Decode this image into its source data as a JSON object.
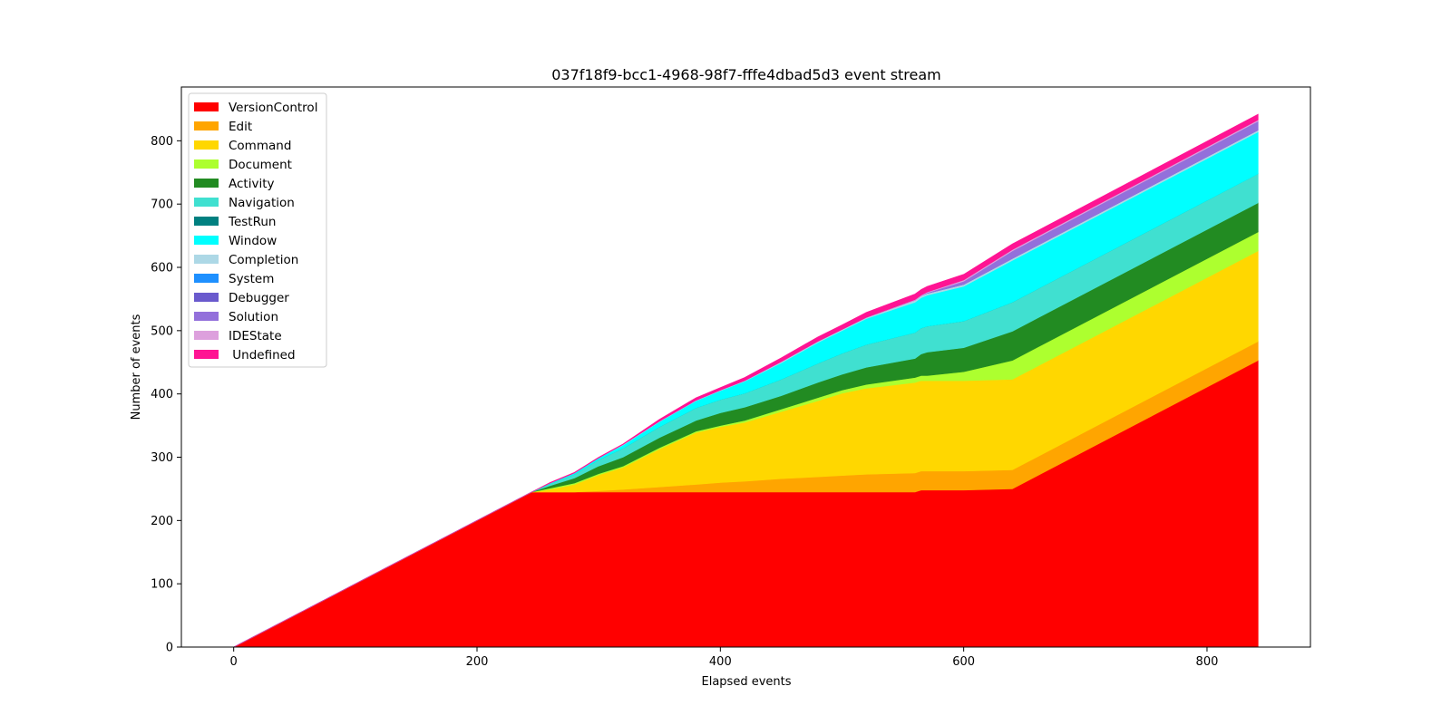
{
  "chart_data": {
    "type": "area",
    "stacked": true,
    "title": "037f18f9-bcc1-4968-98f7-fffe4dbad5d3 event stream",
    "xlabel": "Elapsed events",
    "ylabel": "Number of events",
    "xlim": [
      -43,
      885
    ],
    "ylim": [
      0,
      885
    ],
    "xticks": [
      0,
      200,
      400,
      600,
      800
    ],
    "yticks": [
      0,
      100,
      200,
      300,
      400,
      500,
      600,
      700,
      800
    ],
    "grid": false,
    "legend_position": "top-left",
    "x": [
      0,
      245,
      260,
      280,
      300,
      320,
      350,
      380,
      400,
      420,
      450,
      480,
      500,
      520,
      560,
      565,
      570,
      600,
      640,
      842
    ],
    "series": [
      {
        "name": "VersionControl",
        "color": "#ff0000",
        "values": [
          0,
          245,
          245,
          245,
          245,
          245,
          245,
          245,
          245,
          245,
          245,
          245,
          245,
          245,
          245,
          248,
          248,
          248,
          250,
          453
        ]
      },
      {
        "name": "Edit",
        "color": "#ffa500",
        "values": [
          0,
          0,
          0,
          0,
          2,
          4,
          8,
          12,
          15,
          17,
          21,
          24,
          26,
          28,
          30,
          30,
          30,
          30,
          30,
          30
        ]
      },
      {
        "name": "Command",
        "color": "#ffd700",
        "values": [
          0,
          0,
          4,
          12,
          25,
          35,
          60,
          82,
          88,
          93,
          106,
          120,
          130,
          136,
          143,
          143,
          143,
          143,
          143,
          143
        ]
      },
      {
        "name": "Document",
        "color": "#adff2f",
        "values": [
          0,
          0,
          2,
          2,
          2,
          2,
          2,
          2,
          2,
          3,
          4,
          5,
          5,
          6,
          8,
          8,
          8,
          14,
          30,
          30
        ]
      },
      {
        "name": "Activity",
        "color": "#228b22",
        "values": [
          0,
          0,
          4,
          8,
          12,
          14,
          16,
          17,
          20,
          21,
          21,
          24,
          25,
          27,
          30,
          34,
          37,
          38,
          46,
          46
        ]
      },
      {
        "name": "Navigation",
        "color": "#40e0d0",
        "values": [
          0,
          0,
          3,
          6,
          10,
          14,
          17,
          20,
          21,
          22,
          26,
          30,
          33,
          36,
          41,
          41,
          41,
          42,
          46,
          46
        ]
      },
      {
        "name": "TestRun",
        "color": "#008080",
        "values": [
          0,
          0,
          0,
          0,
          0,
          0,
          0,
          0,
          0,
          0,
          0,
          0,
          0,
          0,
          0,
          0,
          0,
          0,
          0,
          0
        ]
      },
      {
        "name": "Window",
        "color": "#00ffff",
        "values": [
          0,
          0,
          1,
          2,
          3,
          5,
          8,
          11,
          14,
          19,
          26,
          33,
          36,
          41,
          48,
          48,
          49,
          55,
          66,
          66
        ]
      },
      {
        "name": "Completion",
        "color": "#add8e6",
        "values": [
          0,
          0,
          0,
          0,
          0,
          1,
          1,
          1,
          1,
          1,
          2,
          2,
          2,
          2,
          3,
          3,
          3,
          3,
          3,
          3
        ]
      },
      {
        "name": "System",
        "color": "#1e90ff",
        "values": [
          0,
          0,
          0,
          0,
          0,
          0,
          0,
          0,
          0,
          0,
          0,
          0,
          0,
          0,
          0,
          0,
          0,
          0,
          0,
          0
        ]
      },
      {
        "name": "Debugger",
        "color": "#6a5acd",
        "values": [
          0,
          0,
          0,
          0,
          0,
          0,
          0,
          0,
          0,
          0,
          0,
          0,
          0,
          0,
          0,
          0,
          0,
          0,
          0,
          0
        ]
      },
      {
        "name": "Solution",
        "color": "#9370db",
        "values": [
          0,
          0,
          0,
          0,
          0,
          0,
          0,
          0,
          0,
          0,
          0,
          0,
          0,
          0,
          0,
          0,
          1,
          5,
          12,
          14
        ]
      },
      {
        "name": "IDEState",
        "color": "#dda0dd",
        "values": [
          0,
          0,
          0,
          0,
          0,
          0,
          0,
          0,
          0,
          0,
          0,
          0,
          0,
          0,
          1,
          1,
          1,
          2,
          2,
          2
        ]
      },
      {
        "name": " Undefined",
        "color": "#ff1493",
        "values": [
          0,
          0,
          1,
          1,
          1,
          1,
          3,
          4,
          4,
          5,
          6,
          7,
          7,
          8,
          9,
          9,
          9,
          9,
          9,
          9
        ]
      }
    ]
  }
}
